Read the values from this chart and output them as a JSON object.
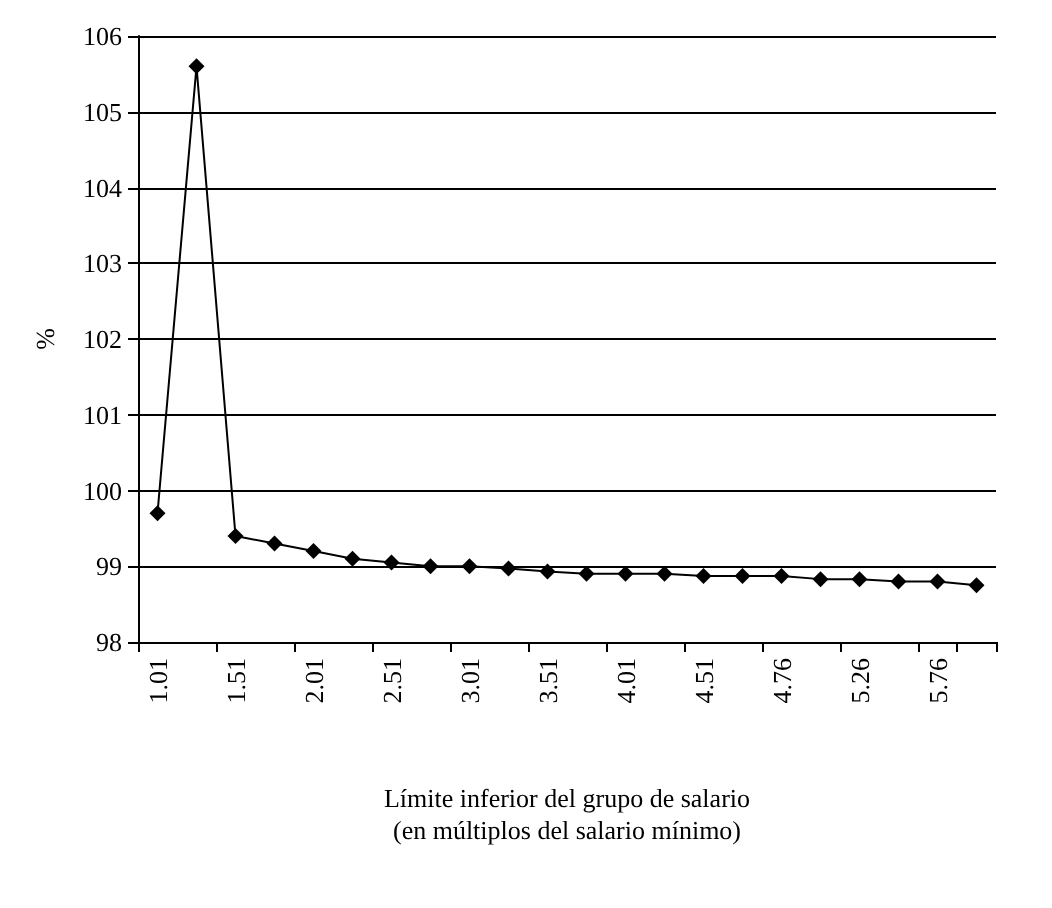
{
  "chart_data": {
    "type": "line",
    "xlabel": "Límite inferior del grupo de salario\n(en múltiplos del salario mínimo)",
    "ylabel": "%",
    "categories": [
      "1.01",
      null,
      "1.51",
      null,
      "2.01",
      null,
      "2.51",
      null,
      "3.01",
      null,
      "3.51",
      null,
      "4.01",
      null,
      "4.51",
      null,
      "4.76",
      null,
      "5.26",
      null,
      "5.76",
      null
    ],
    "series": [
      {
        "color": "#000000",
        "values": [
          99.7,
          105.6,
          99.4,
          99.3,
          99.2,
          99.1,
          99.05,
          99.0,
          99.0,
          98.97,
          98.93,
          98.9,
          98.9,
          98.9,
          98.87,
          98.87,
          98.87,
          98.83,
          98.83,
          98.8,
          98.8,
          98.75
        ]
      }
    ],
    "ylim": [
      98,
      106
    ],
    "yticks": [
      98,
      99,
      100,
      101,
      102,
      103,
      104,
      105,
      106
    ],
    "grid": "y",
    "marker": "diamond",
    "line_style": "solid"
  }
}
